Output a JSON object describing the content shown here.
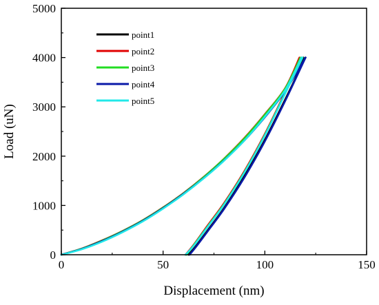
{
  "chart_data": {
    "type": "line",
    "title": "",
    "xlabel": "Displacement (nm)",
    "ylabel": "Load (uN)",
    "xlim": [
      0,
      150
    ],
    "ylim": [
      0,
      5000
    ],
    "xticks": [
      0,
      50,
      100,
      150
    ],
    "yticks": [
      0,
      1000,
      2000,
      3000,
      4000,
      5000
    ],
    "xtick_labels": [
      "0",
      "50",
      "100",
      "150"
    ],
    "ytick_labels": [
      "0",
      "1000",
      "2000",
      "3000",
      "4000",
      "5000"
    ],
    "grid": false,
    "legend_position": "top-left",
    "series": [
      {
        "name": "point1",
        "color": "#000000",
        "loading": [
          [
            0,
            0
          ],
          [
            10,
            120
          ],
          [
            20,
            280
          ],
          [
            30,
            470
          ],
          [
            40,
            690
          ],
          [
            50,
            950
          ],
          [
            60,
            1240
          ],
          [
            70,
            1560
          ],
          [
            80,
            1920
          ],
          [
            90,
            2330
          ],
          [
            100,
            2800
          ],
          [
            110,
            3330
          ],
          [
            119,
            4000
          ]
        ],
        "unloading": [
          [
            120,
            4000
          ],
          [
            110,
            3150
          ],
          [
            100,
            2330
          ],
          [
            90,
            1600
          ],
          [
            80,
            950
          ],
          [
            72,
            500
          ],
          [
            66,
            170
          ],
          [
            62.5,
            0
          ]
        ]
      },
      {
        "name": "point2",
        "color": "#e00000",
        "loading": [
          [
            0,
            0
          ],
          [
            10,
            125
          ],
          [
            20,
            290
          ],
          [
            30,
            480
          ],
          [
            40,
            700
          ],
          [
            50,
            960
          ],
          [
            60,
            1250
          ],
          [
            70,
            1580
          ],
          [
            80,
            1950
          ],
          [
            90,
            2370
          ],
          [
            100,
            2850
          ],
          [
            110,
            3380
          ],
          [
            117,
            4000
          ]
        ],
        "unloading": [
          [
            118,
            4000
          ],
          [
            110,
            3300
          ],
          [
            100,
            2450
          ],
          [
            90,
            1700
          ],
          [
            80,
            1050
          ],
          [
            72,
            600
          ],
          [
            65,
            200
          ],
          [
            61,
            0
          ]
        ]
      },
      {
        "name": "point3",
        "color": "#22dd22",
        "loading": [
          [
            0,
            0
          ],
          [
            10,
            122
          ],
          [
            20,
            285
          ],
          [
            30,
            476
          ],
          [
            40,
            696
          ],
          [
            50,
            955
          ],
          [
            60,
            1245
          ],
          [
            70,
            1575
          ],
          [
            80,
            1945
          ],
          [
            90,
            2360
          ],
          [
            100,
            2840
          ],
          [
            110,
            3370
          ],
          [
            117.5,
            4000
          ]
        ],
        "unloading": [
          [
            118.5,
            4000
          ],
          [
            110,
            3280
          ],
          [
            100,
            2430
          ],
          [
            90,
            1680
          ],
          [
            80,
            1030
          ],
          [
            72,
            580
          ],
          [
            65,
            190
          ],
          [
            61.5,
            0
          ]
        ]
      },
      {
        "name": "point4",
        "color": "#0a1aa8",
        "loading": [
          [
            0,
            0
          ],
          [
            10,
            118
          ],
          [
            20,
            276
          ],
          [
            30,
            466
          ],
          [
            40,
            686
          ],
          [
            50,
            945
          ],
          [
            60,
            1235
          ],
          [
            70,
            1555
          ],
          [
            80,
            1915
          ],
          [
            90,
            2320
          ],
          [
            100,
            2790
          ],
          [
            110,
            3320
          ],
          [
            120,
            4000
          ]
        ],
        "unloading": [
          [
            120,
            4000
          ],
          [
            110,
            3120
          ],
          [
            100,
            2300
          ],
          [
            90,
            1570
          ],
          [
            80,
            930
          ],
          [
            72,
            480
          ],
          [
            66,
            150
          ],
          [
            63,
            0
          ]
        ]
      },
      {
        "name": "point5",
        "color": "#22e8e8",
        "loading": [
          [
            0,
            0
          ],
          [
            10,
            110
          ],
          [
            20,
            265
          ],
          [
            30,
            455
          ],
          [
            40,
            675
          ],
          [
            50,
            935
          ],
          [
            60,
            1225
          ],
          [
            70,
            1550
          ],
          [
            80,
            1910
          ],
          [
            90,
            2320
          ],
          [
            100,
            2800
          ],
          [
            110,
            3340
          ],
          [
            118,
            4000
          ]
        ],
        "unloading": [
          [
            118.5,
            4000
          ],
          [
            110,
            3270
          ],
          [
            100,
            2420
          ],
          [
            90,
            1670
          ],
          [
            80,
            1020
          ],
          [
            72,
            570
          ],
          [
            65,
            180
          ],
          [
            61,
            0
          ]
        ]
      }
    ]
  }
}
